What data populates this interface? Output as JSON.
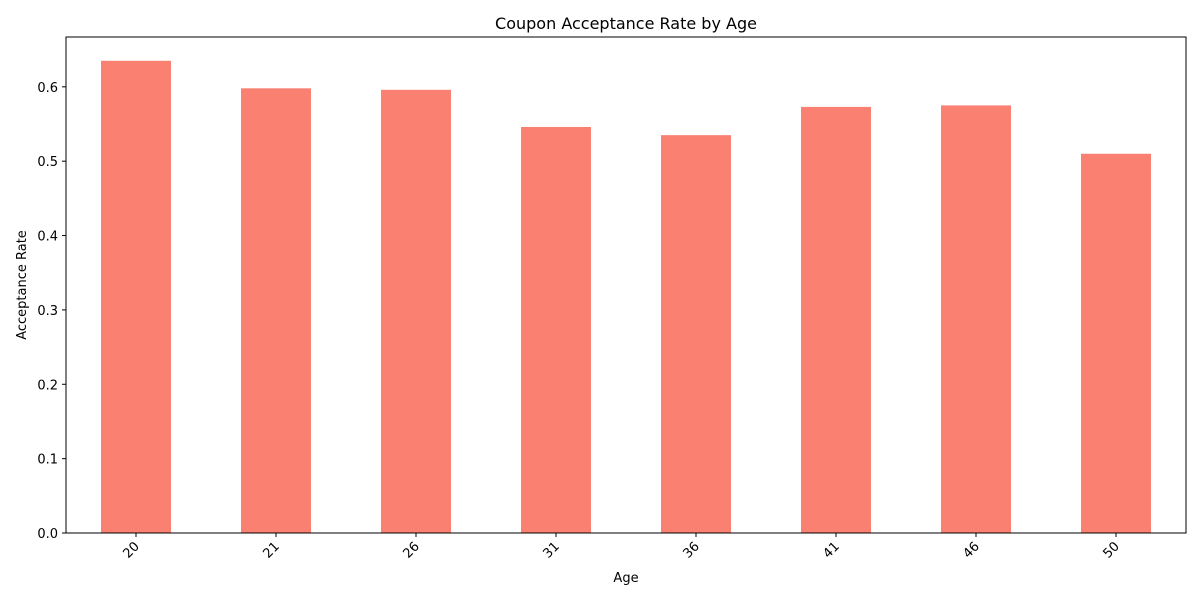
{
  "chart_data": {
    "type": "bar",
    "title": "Coupon Acceptance Rate by Age",
    "xlabel": "Age",
    "ylabel": "Acceptance Rate",
    "categories": [
      "20",
      "21",
      "26",
      "31",
      "36",
      "41",
      "46",
      "50"
    ],
    "values": [
      0.635,
      0.598,
      0.596,
      0.546,
      0.535,
      0.573,
      0.575,
      0.51
    ],
    "ylim": [
      0,
      0.667
    ],
    "yticks": [
      0.0,
      0.1,
      0.2,
      0.3,
      0.4,
      0.5,
      0.6
    ],
    "ytick_labels": [
      "0.0",
      "0.1",
      "0.2",
      "0.3",
      "0.4",
      "0.5",
      "0.6"
    ],
    "bar_color": "#fa8072",
    "grid": false,
    "legend": "none",
    "xtick_rotation": "45 degrees, right-aligned"
  }
}
